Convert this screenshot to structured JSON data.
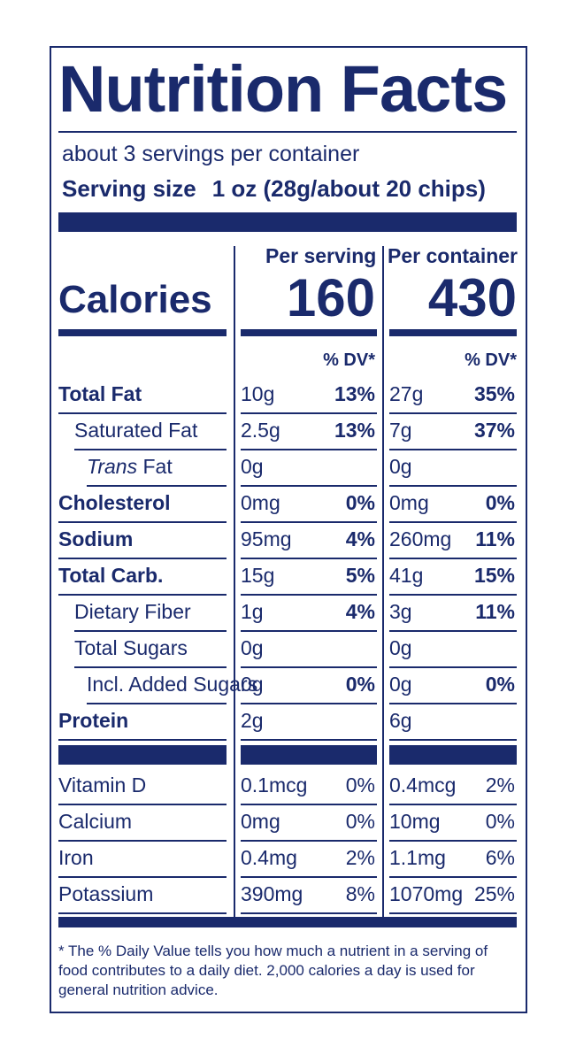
{
  "title": "Nutrition Facts",
  "servings_per_container": "about 3 servings per container",
  "serving_size_label": "Serving size",
  "serving_size_value": "1 oz (28g/about 20 chips)",
  "calories_label": "Calories",
  "columns": {
    "per_serving": "Per serving",
    "per_container": "Per container"
  },
  "calories": {
    "per_serving": "160",
    "per_container": "430"
  },
  "dv_header": "% DV*",
  "nutrients": [
    {
      "name": "Total Fat",
      "s_amt": "10g",
      "s_dv": "13%",
      "c_amt": "27g",
      "c_dv": "35%"
    },
    {
      "name": "Saturated Fat",
      "s_amt": "2.5g",
      "s_dv": "13%",
      "c_amt": "7g",
      "c_dv": "37%"
    },
    {
      "name_italic": "Trans",
      "name_rest": " Fat",
      "s_amt": "0g",
      "s_dv": "",
      "c_amt": "0g",
      "c_dv": ""
    },
    {
      "name": "Cholesterol",
      "s_amt": "0mg",
      "s_dv": "0%",
      "c_amt": "0mg",
      "c_dv": "0%"
    },
    {
      "name": "Sodium",
      "s_amt": "95mg",
      "s_dv": "4%",
      "c_amt": "260mg",
      "c_dv": "11%"
    },
    {
      "name": "Total Carb.",
      "s_amt": "15g",
      "s_dv": "5%",
      "c_amt": "41g",
      "c_dv": "15%"
    },
    {
      "name": "Dietary Fiber",
      "s_amt": "1g",
      "s_dv": "4%",
      "c_amt": "3g",
      "c_dv": "11%"
    },
    {
      "name": "Total Sugars",
      "s_amt": "0g",
      "s_dv": "",
      "c_amt": "0g",
      "c_dv": ""
    },
    {
      "name": "Incl. Added Sugars",
      "s_amt": "0g",
      "s_dv": "0%",
      "c_amt": "0g",
      "c_dv": "0%"
    },
    {
      "name": "Protein",
      "s_amt": "2g",
      "s_dv": "",
      "c_amt": "6g",
      "c_dv": ""
    }
  ],
  "vitamins": [
    {
      "name": "Vitamin D",
      "s_amt": "0.1mcg",
      "s_dv": "0%",
      "c_amt": "0.4mcg",
      "c_dv": "2%"
    },
    {
      "name": "Calcium",
      "s_amt": "0mg",
      "s_dv": "0%",
      "c_amt": "10mg",
      "c_dv": "0%"
    },
    {
      "name": "Iron",
      "s_amt": "0.4mg",
      "s_dv": "2%",
      "c_amt": "1.1mg",
      "c_dv": "6%"
    },
    {
      "name": "Potassium",
      "s_amt": "390mg",
      "s_dv": "8%",
      "c_amt": "1070mg",
      "c_dv": "25%"
    }
  ],
  "footnote": "* The % Daily Value tells you how much a nutrient in a serving of food contributes to a daily diet. 2,000 calories a day is used for general nutrition advice.",
  "colors": {
    "ink": "#1a2a6c",
    "background": "#ffffff"
  }
}
